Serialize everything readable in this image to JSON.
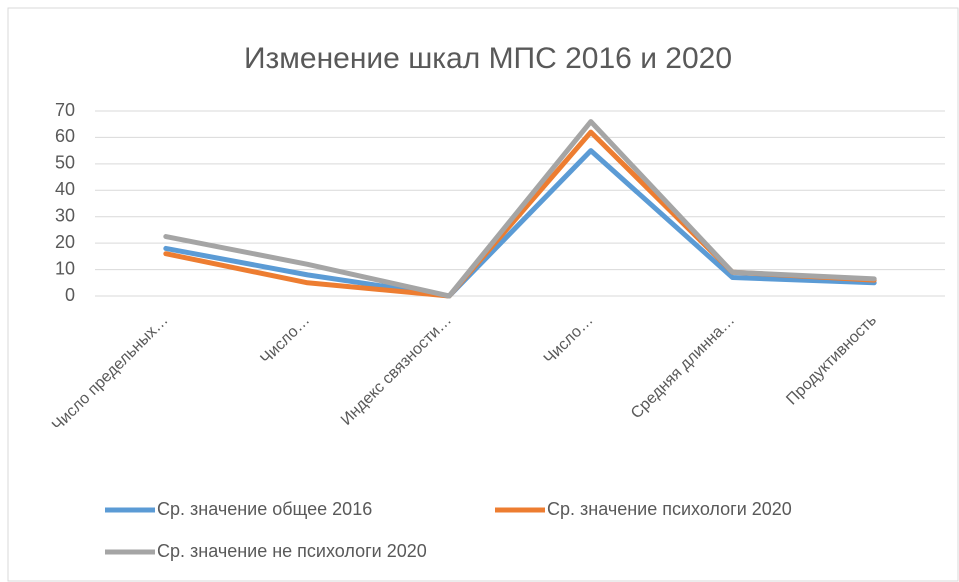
{
  "chart_data": {
    "type": "line",
    "title": "Изменение шкал МПС 2016 и 2020",
    "categories": [
      "Число предельных…",
      "Число…",
      "Индекс связности…",
      "Число…",
      "Средняя длинна…",
      "Продуктивность"
    ],
    "series": [
      {
        "name": "Ср. значение общее 2016",
        "color": "#5b9bd5",
        "values": [
          18,
          8,
          0,
          55,
          7,
          5
        ]
      },
      {
        "name": "Ср. значение психологи 2020",
        "color": "#ed7d31",
        "values": [
          16,
          5,
          0,
          62,
          9,
          6
        ]
      },
      {
        "name": "Ср. значение не психологи 2020",
        "color": "#a5a5a5",
        "values": [
          22.5,
          12,
          0,
          66,
          9,
          6.5
        ]
      }
    ],
    "ylim": [
      0,
      70
    ],
    "yticks": [
      0,
      10,
      20,
      30,
      40,
      50,
      60,
      70
    ],
    "grid": true
  }
}
